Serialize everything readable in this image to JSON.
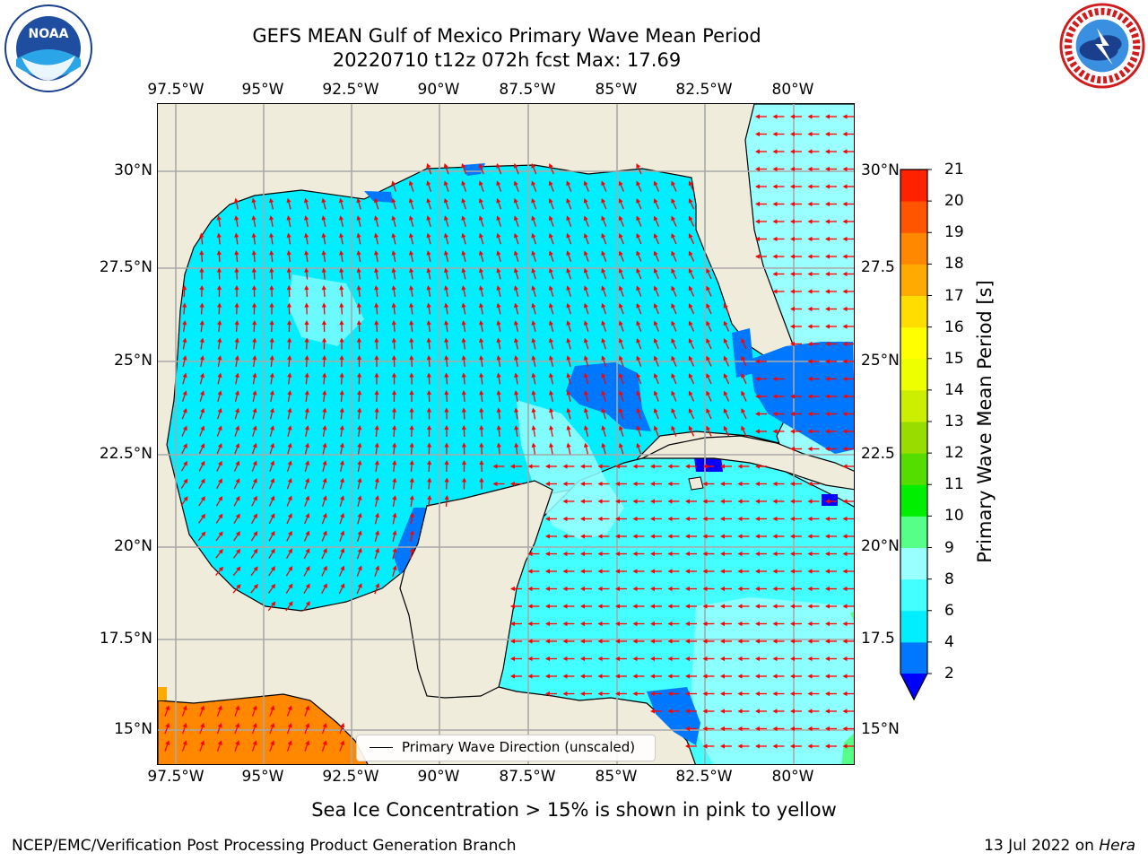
{
  "title": {
    "line1": "GEFS MEAN Gulf of Mexico Primary Wave Mean Period",
    "line2": "20220710 t12z 072h fcst   Max: 17.69"
  },
  "map": {
    "lon_labels": [
      "97.5°W",
      "95°W",
      "92.5°W",
      "90°W",
      "87.5°W",
      "85°W",
      "82.5°W",
      "80°W"
    ],
    "lat_labels_left": [
      "30°N",
      "27.5°N",
      "25°N",
      "22.5°N",
      "20°N",
      "17.5°N",
      "15°N"
    ],
    "lat_labels_right": [
      "30°N",
      "27.5",
      "25°N",
      "22.5",
      "20°N",
      "17.5",
      "15°N"
    ],
    "arrow_color": "#ff0000",
    "land_color": "#efecdc"
  },
  "legend": {
    "label": "Primary Wave Direction (unscaled)"
  },
  "colorbar": {
    "label": "Primary Wave Mean Period [s]",
    "ticks": [
      "2",
      "4",
      "6",
      "8",
      "9",
      "10",
      "11",
      "12",
      "13",
      "14",
      "15",
      "16",
      "17",
      "18",
      "19",
      "20",
      "21"
    ],
    "colors": [
      "#0077ff",
      "#00eeff",
      "#44ffff",
      "#99ffff",
      "#55ff88",
      "#00ee00",
      "#55dd00",
      "#99dd00",
      "#ccee00",
      "#eeff00",
      "#ffff00",
      "#ffdd00",
      "#ffaa00",
      "#ff8800",
      "#ff5500",
      "#ff2200",
      "#ff0000"
    ],
    "under_color": "#0000ff"
  },
  "subtitle": "Sea Ice Concentration > 15% is shown in pink to yellow",
  "footer": {
    "left": "NCEP/EMC/Verification Post Processing Product Generation Branch",
    "right_prefix": "13 Jul 2022 on ",
    "right_host": "Hera"
  },
  "logos": {
    "noaa": "NOAA",
    "nws_ring": "NATIONAL WEATHER SERVICE"
  }
}
